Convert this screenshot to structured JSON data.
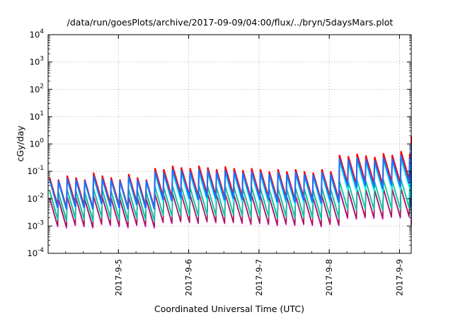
{
  "chart_data": {
    "type": "line",
    "title": "/data/run/goesPlots/archive/2017-09-09/04:00/flux/../bryn/5daysMars.plot",
    "xlabel": "Coordinated Universal Time (UTC)",
    "ylabel": "cGy/day",
    "yscale": "log",
    "ylim": [
      0.0001,
      10000
    ],
    "xlim": [
      "2017-09-04 00:00",
      "2017-09-09 04:00"
    ],
    "y_ticks": [
      {
        "exp": "-4"
      },
      {
        "exp": "-3"
      },
      {
        "exp": "-2"
      },
      {
        "exp": "-1"
      },
      {
        "exp": "0"
      },
      {
        "exp": "1"
      },
      {
        "exp": "2"
      },
      {
        "exp": "3"
      },
      {
        "exp": "4"
      }
    ],
    "x_ticks": [
      "2017-9-5",
      "2017-9-6",
      "2017-9-7",
      "2017-9-8",
      "2017-9-9"
    ],
    "grid": true,
    "legend": "none",
    "period_hours": 3,
    "series": [
      {
        "color": "#ff0000",
        "width": 2.0,
        "peaks": [
          0.06,
          0.05,
          0.07,
          0.06,
          0.05,
          0.09,
          0.07,
          0.06,
          0.05,
          0.08,
          0.06,
          0.05,
          0.13,
          0.12,
          0.16,
          0.14,
          0.13,
          0.16,
          0.14,
          0.12,
          0.15,
          0.13,
          0.11,
          0.13,
          0.12,
          0.1,
          0.12,
          0.1,
          0.12,
          0.1,
          0.09,
          0.12,
          0.1,
          0.4,
          0.36,
          0.44,
          0.38,
          0.34,
          0.46,
          0.4,
          0.55,
          0.45,
          0.4,
          0.5,
          0.42,
          0.38,
          0.44,
          0.36,
          1.9,
          0.5,
          0.35,
          0.28,
          0.22,
          0.16,
          0.13,
          0.1,
          0.09,
          0.08,
          0.07,
          0.08,
          0.09,
          0.1,
          0.09
        ]
      },
      {
        "color": "#ff00ff",
        "width": 1.5,
        "peaks": [
          0.01,
          0.009,
          0.011,
          0.01,
          0.009,
          0.012,
          0.011,
          0.01,
          0.009,
          0.011,
          0.01,
          0.009,
          0.014,
          0.013,
          0.015,
          0.014,
          0.013,
          0.015,
          0.014,
          0.013,
          0.014,
          0.013,
          0.012,
          0.013,
          0.012,
          0.011,
          0.012,
          0.011,
          0.012,
          0.011,
          0.01,
          0.012,
          0.011,
          0.02,
          0.019,
          0.021,
          0.02,
          0.019,
          0.022,
          0.021,
          0.023,
          0.022,
          0.021,
          0.022,
          0.021,
          0.02,
          0.021,
          0.02,
          0.025,
          0.02,
          0.018,
          0.016,
          0.015,
          0.014,
          0.013,
          0.012,
          0.012,
          0.011,
          0.011,
          0.011,
          0.012,
          0.012,
          0.012
        ]
      },
      {
        "color": "#9a1a4a",
        "width": 1.5,
        "peaks": [
          0.011,
          0.01,
          0.012,
          0.011,
          0.01,
          0.013,
          0.012,
          0.011,
          0.01,
          0.012,
          0.011,
          0.01,
          0.015,
          0.014,
          0.016,
          0.015,
          0.014,
          0.016,
          0.015,
          0.014,
          0.015,
          0.014,
          0.013,
          0.014,
          0.013,
          0.012,
          0.013,
          0.012,
          0.013,
          0.012,
          0.011,
          0.013,
          0.012,
          0.022,
          0.021,
          0.023,
          0.022,
          0.021,
          0.024,
          0.023,
          0.025,
          0.024,
          0.023,
          0.024,
          0.023,
          0.022,
          0.023,
          0.022,
          0.028,
          0.022,
          0.02,
          0.018,
          0.017,
          0.016,
          0.014,
          0.013,
          0.013,
          0.012,
          0.012,
          0.012,
          0.013,
          0.013,
          0.013
        ]
      },
      {
        "color": "#2e8b57",
        "width": 1.5,
        "peaks": [
          0.02,
          0.018,
          0.022,
          0.02,
          0.018,
          0.024,
          0.022,
          0.02,
          0.018,
          0.022,
          0.02,
          0.018,
          0.028,
          0.026,
          0.03,
          0.028,
          0.026,
          0.03,
          0.028,
          0.026,
          0.029,
          0.027,
          0.025,
          0.027,
          0.025,
          0.023,
          0.025,
          0.023,
          0.025,
          0.023,
          0.021,
          0.025,
          0.023,
          0.045,
          0.042,
          0.048,
          0.045,
          0.042,
          0.05,
          0.046,
          0.052,
          0.048,
          0.045,
          0.05,
          0.046,
          0.043,
          0.046,
          0.043,
          0.06,
          0.045,
          0.04,
          0.036,
          0.033,
          0.03,
          0.028,
          0.026,
          0.025,
          0.024,
          0.023,
          0.024,
          0.025,
          0.026,
          0.025
        ]
      },
      {
        "color": "#00ccaa",
        "width": 1.5,
        "peaks": [
          0.018,
          0.016,
          0.02,
          0.018,
          0.016,
          0.022,
          0.02,
          0.018,
          0.016,
          0.02,
          0.018,
          0.016,
          0.026,
          0.024,
          0.028,
          0.026,
          0.024,
          0.028,
          0.026,
          0.024,
          0.027,
          0.025,
          0.023,
          0.025,
          0.023,
          0.021,
          0.023,
          0.021,
          0.023,
          0.021,
          0.019,
          0.023,
          0.021,
          0.042,
          0.039,
          0.045,
          0.042,
          0.039,
          0.047,
          0.043,
          0.049,
          0.045,
          0.042,
          0.047,
          0.043,
          0.04,
          0.043,
          0.04,
          0.056,
          0.042,
          0.037,
          0.033,
          0.03,
          0.027,
          0.025,
          0.023,
          0.022,
          0.021,
          0.02,
          0.021,
          0.022,
          0.023,
          0.022
        ]
      },
      {
        "color": "#00ffff",
        "width": 1.5,
        "peaks": [
          0.045,
          0.04,
          0.05,
          0.045,
          0.04,
          0.06,
          0.05,
          0.045,
          0.04,
          0.055,
          0.045,
          0.04,
          0.08,
          0.075,
          0.09,
          0.085,
          0.08,
          0.09,
          0.085,
          0.075,
          0.085,
          0.08,
          0.07,
          0.08,
          0.075,
          0.065,
          0.075,
          0.065,
          0.075,
          0.065,
          0.06,
          0.075,
          0.065,
          0.22,
          0.2,
          0.24,
          0.21,
          0.19,
          0.25,
          0.22,
          0.28,
          0.24,
          0.22,
          0.26,
          0.23,
          0.21,
          0.24,
          0.2,
          0.65,
          0.23,
          0.18,
          0.15,
          0.12,
          0.095,
          0.08,
          0.065,
          0.058,
          0.052,
          0.048,
          0.052,
          0.058,
          0.065,
          0.058
        ]
      },
      {
        "color": "#1e6fff",
        "width": 2.0,
        "peaks": [
          0.05,
          0.045,
          0.055,
          0.05,
          0.045,
          0.07,
          0.055,
          0.05,
          0.045,
          0.065,
          0.05,
          0.045,
          0.1,
          0.09,
          0.12,
          0.11,
          0.1,
          0.12,
          0.11,
          0.095,
          0.11,
          0.1,
          0.09,
          0.1,
          0.095,
          0.08,
          0.095,
          0.08,
          0.095,
          0.08,
          0.075,
          0.095,
          0.08,
          0.3,
          0.27,
          0.32,
          0.28,
          0.25,
          0.33,
          0.29,
          0.38,
          0.32,
          0.29,
          0.35,
          0.3,
          0.27,
          0.31,
          0.26,
          1.0,
          0.32,
          0.24,
          0.19,
          0.15,
          0.115,
          0.095,
          0.078,
          0.068,
          0.06,
          0.055,
          0.06,
          0.068,
          0.078,
          0.068
        ]
      }
    ]
  }
}
